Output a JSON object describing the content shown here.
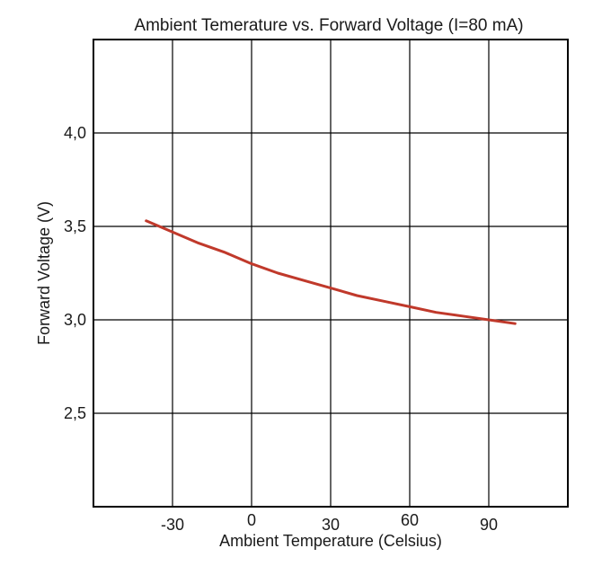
{
  "chart_data": {
    "type": "line",
    "title": "Ambient Temerature vs. Forward Voltage (I=80 mA)",
    "xlabel": "Ambient Temperature (Celsius)",
    "ylabel": "Forward Voltage (V)",
    "xlim": [
      -60,
      120
    ],
    "ylim": [
      2.0,
      4.5
    ],
    "x_ticks": [
      -30,
      0,
      30,
      60,
      90
    ],
    "x_tick_labels": [
      "-30",
      "0",
      "30",
      "60",
      "90"
    ],
    "y_ticks": [
      2.5,
      3.0,
      3.5,
      4.0
    ],
    "y_tick_labels": [
      "2,5",
      "3,0",
      "3,5",
      "4,0"
    ],
    "grid": true,
    "series": [
      {
        "color": "#c0392b",
        "x": [
          -40,
          -30,
          -20,
          -10,
          0,
          10,
          20,
          30,
          40,
          50,
          60,
          70,
          80,
          90,
          100
        ],
        "y": [
          3.53,
          3.47,
          3.41,
          3.36,
          3.3,
          3.25,
          3.21,
          3.17,
          3.13,
          3.1,
          3.07,
          3.04,
          3.02,
          3.0,
          2.98
        ]
      }
    ]
  }
}
